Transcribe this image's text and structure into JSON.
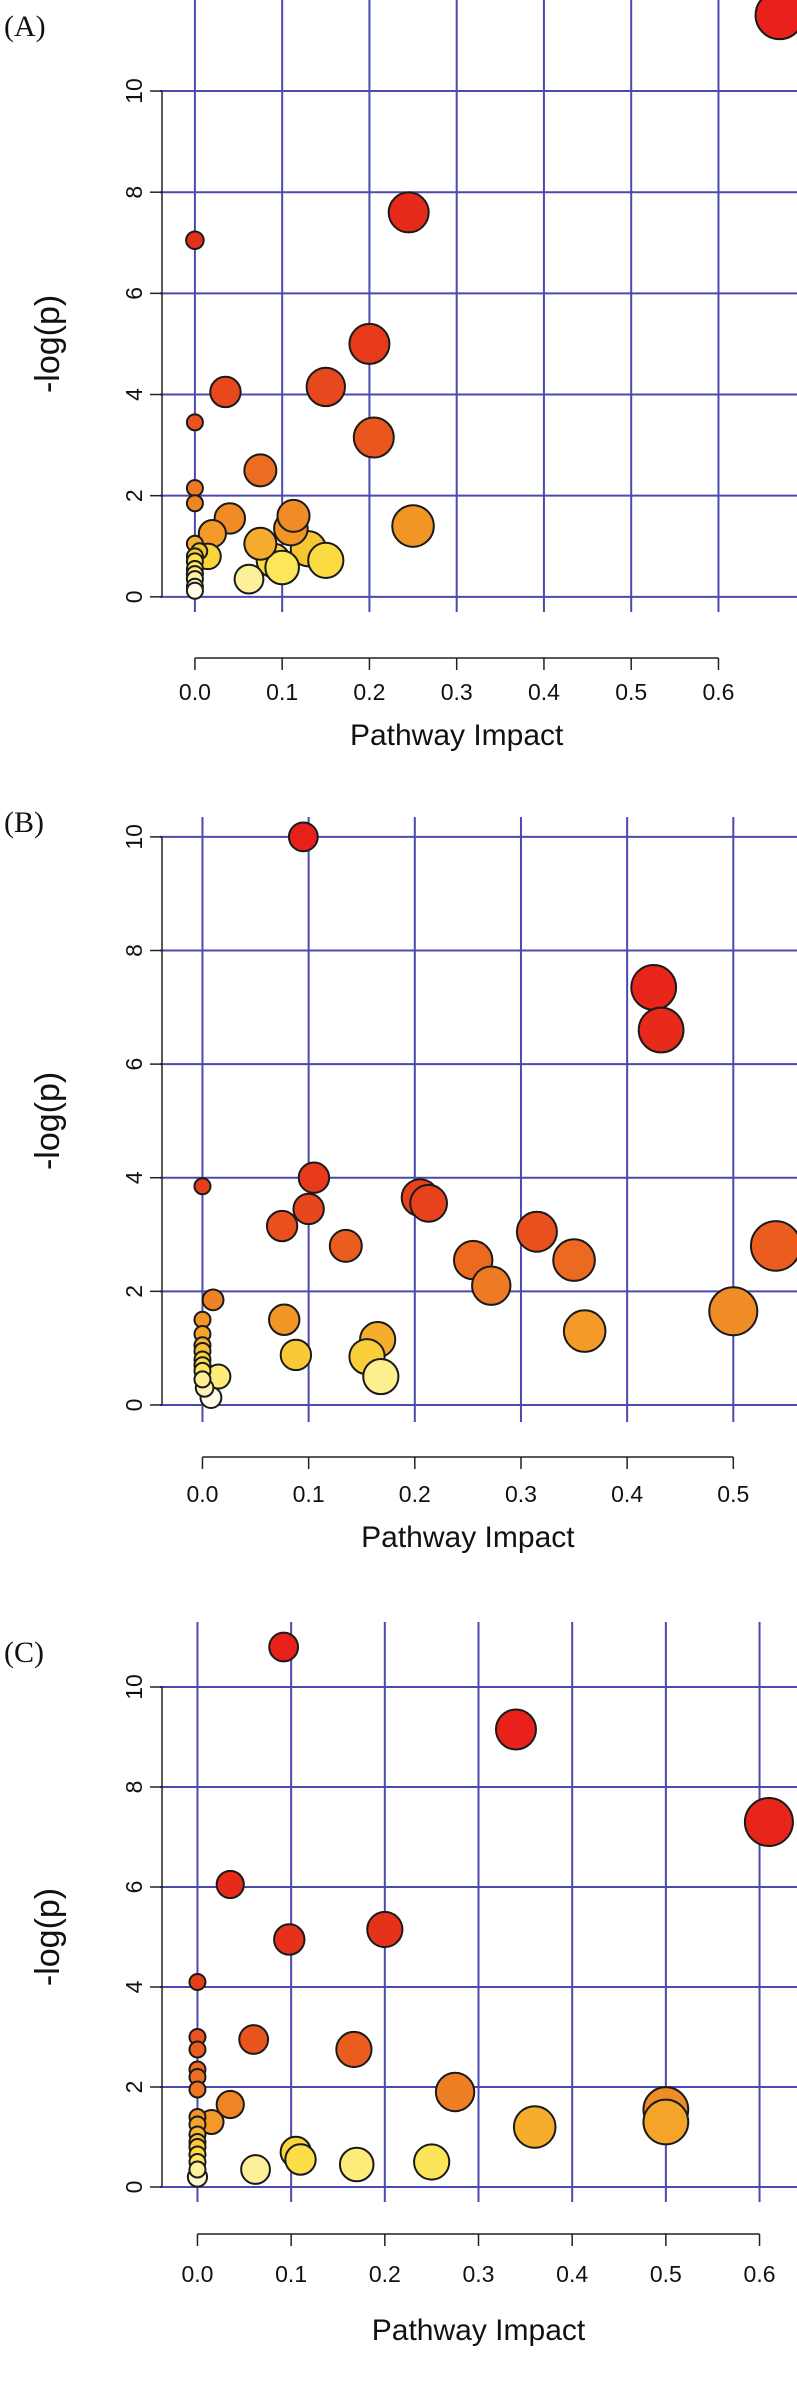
{
  "chart_data": [
    {
      "type": "scatter",
      "panel_label": "(A)",
      "xlabel": "Pathway Impact",
      "ylabel": "-log(p)",
      "xlim": [
        -0.04,
        0.69
      ],
      "ylim": [
        -0.3,
        11.8
      ],
      "xticks": [
        0.0,
        0.1,
        0.2,
        0.3,
        0.4,
        0.5,
        0.6
      ],
      "yticks": [
        0,
        2,
        4,
        6,
        8,
        10
      ],
      "xtick_labels": [
        "0.0",
        "0.1",
        "0.2",
        "0.3",
        "0.4",
        "0.5",
        "0.6"
      ],
      "ytick_labels": [
        "0",
        "2",
        "4",
        "6",
        "8",
        "10"
      ],
      "points": [
        {
          "x": 0.67,
          "y": 11.5,
          "size": 3,
          "color": "#e8221a"
        },
        {
          "x": 0.245,
          "y": 7.6,
          "size": 2.5,
          "color": "#e52a1a"
        },
        {
          "x": 0.0,
          "y": 7.05,
          "size": 1.1,
          "color": "#e5301c"
        },
        {
          "x": 0.2,
          "y": 5.0,
          "size": 2.5,
          "color": "#e63a1a"
        },
        {
          "x": 0.15,
          "y": 4.15,
          "size": 2.4,
          "color": "#e8481d"
        },
        {
          "x": 0.035,
          "y": 4.05,
          "size": 1.9,
          "color": "#e8481d"
        },
        {
          "x": 0.0,
          "y": 3.45,
          "size": 1.0,
          "color": "#e9531d"
        },
        {
          "x": 0.205,
          "y": 3.15,
          "size": 2.5,
          "color": "#e9571e"
        },
        {
          "x": 0.075,
          "y": 2.5,
          "size": 2.0,
          "color": "#ec6d21"
        },
        {
          "x": 0.0,
          "y": 2.15,
          "size": 1.0,
          "color": "#ee7a23"
        },
        {
          "x": 0.0,
          "y": 1.85,
          "size": 1.0,
          "color": "#ef8424"
        },
        {
          "x": 0.113,
          "y": 1.6,
          "size": 2.0,
          "color": "#f08c26"
        },
        {
          "x": 0.04,
          "y": 1.55,
          "size": 1.9,
          "color": "#f08c26"
        },
        {
          "x": 0.25,
          "y": 1.4,
          "size": 2.6,
          "color": "#f29527"
        },
        {
          "x": 0.11,
          "y": 1.35,
          "size": 2.1,
          "color": "#f29527"
        },
        {
          "x": 0.02,
          "y": 1.25,
          "size": 1.7,
          "color": "#f39a28"
        },
        {
          "x": 0.075,
          "y": 1.05,
          "size": 2.0,
          "color": "#f5ab2c"
        },
        {
          "x": 0.0,
          "y": 1.05,
          "size": 1.0,
          "color": "#f6b22f"
        },
        {
          "x": 0.13,
          "y": 0.95,
          "size": 2.2,
          "color": "#f8c534"
        },
        {
          "x": 0.005,
          "y": 0.9,
          "size": 1.0,
          "color": "#f8c534"
        },
        {
          "x": 0.015,
          "y": 0.8,
          "size": 1.6,
          "color": "#fad53a"
        },
        {
          "x": 0.0,
          "y": 0.8,
          "size": 1.0,
          "color": "#f9d03a"
        },
        {
          "x": 0.09,
          "y": 0.72,
          "size": 2.1,
          "color": "#fbdb41"
        },
        {
          "x": 0.15,
          "y": 0.72,
          "size": 2.2,
          "color": "#fbdb41"
        },
        {
          "x": 0.0,
          "y": 0.7,
          "size": 1.0,
          "color": "#fce04a"
        },
        {
          "x": 0.1,
          "y": 0.58,
          "size": 2.1,
          "color": "#fce75a"
        },
        {
          "x": 0.0,
          "y": 0.55,
          "size": 1.0,
          "color": "#fce75a"
        },
        {
          "x": 0.0,
          "y": 0.45,
          "size": 1.0,
          "color": "#fdee78"
        },
        {
          "x": 0.062,
          "y": 0.35,
          "size": 1.8,
          "color": "#fdf09a"
        },
        {
          "x": 0.0,
          "y": 0.35,
          "size": 1.0,
          "color": "#fdf4a8"
        },
        {
          "x": 0.0,
          "y": 0.2,
          "size": 1.0,
          "color": "#fef8cc"
        },
        {
          "x": 0.0,
          "y": 0.12,
          "size": 1.0,
          "color": "#fffbe6"
        }
      ]
    },
    {
      "type": "scatter",
      "panel_label": "(B)",
      "xlabel": "Pathway Impact",
      "ylabel": "-log(p)",
      "xlim": [
        -0.04,
        0.56
      ],
      "ylim": [
        -0.3,
        10.35
      ],
      "xticks": [
        0.0,
        0.1,
        0.2,
        0.3,
        0.4,
        0.5
      ],
      "yticks": [
        0,
        2,
        4,
        6,
        8,
        10
      ],
      "xtick_labels": [
        "0.0",
        "0.1",
        "0.2",
        "0.3",
        "0.4",
        "0.5"
      ],
      "ytick_labels": [
        "0",
        "2",
        "4",
        "6",
        "8",
        "10"
      ],
      "points": [
        {
          "x": 0.095,
          "y": 10.0,
          "size": 1.8,
          "color": "#e8201a"
        },
        {
          "x": 0.425,
          "y": 7.35,
          "size": 2.8,
          "color": "#e8251a"
        },
        {
          "x": 0.432,
          "y": 6.6,
          "size": 2.8,
          "color": "#e72a1a"
        },
        {
          "x": 0.105,
          "y": 4.0,
          "size": 1.9,
          "color": "#e63a1a"
        },
        {
          "x": 0.0,
          "y": 3.85,
          "size": 1.0,
          "color": "#e63e1b"
        },
        {
          "x": 0.205,
          "y": 3.65,
          "size": 2.3,
          "color": "#e7421c"
        },
        {
          "x": 0.213,
          "y": 3.55,
          "size": 2.3,
          "color": "#e7421c"
        },
        {
          "x": 0.1,
          "y": 3.45,
          "size": 1.9,
          "color": "#e8461d"
        },
        {
          "x": 0.075,
          "y": 3.15,
          "size": 1.9,
          "color": "#e8501d"
        },
        {
          "x": 0.315,
          "y": 3.05,
          "size": 2.5,
          "color": "#e8501d"
        },
        {
          "x": 0.54,
          "y": 2.8,
          "size": 3.1,
          "color": "#ea5d1f"
        },
        {
          "x": 0.135,
          "y": 2.8,
          "size": 2.0,
          "color": "#ea5d1f"
        },
        {
          "x": 0.255,
          "y": 2.55,
          "size": 2.4,
          "color": "#ec6920"
        },
        {
          "x": 0.35,
          "y": 2.55,
          "size": 2.6,
          "color": "#ec6920"
        },
        {
          "x": 0.272,
          "y": 2.1,
          "size": 2.4,
          "color": "#ee7a23"
        },
        {
          "x": 0.01,
          "y": 1.85,
          "size": 1.3,
          "color": "#ef8224"
        },
        {
          "x": 0.5,
          "y": 1.65,
          "size": 3.0,
          "color": "#f08c26"
        },
        {
          "x": 0.077,
          "y": 1.5,
          "size": 1.9,
          "color": "#f29527"
        },
        {
          "x": 0.0,
          "y": 1.5,
          "size": 1.0,
          "color": "#f29527"
        },
        {
          "x": 0.36,
          "y": 1.3,
          "size": 2.6,
          "color": "#f39a28"
        },
        {
          "x": 0.0,
          "y": 1.25,
          "size": 1.0,
          "color": "#f5a42a"
        },
        {
          "x": 0.165,
          "y": 1.15,
          "size": 2.2,
          "color": "#f6ad2c"
        },
        {
          "x": 0.0,
          "y": 1.05,
          "size": 1.0,
          "color": "#f7b72f"
        },
        {
          "x": 0.0,
          "y": 0.95,
          "size": 1.0,
          "color": "#f8c033"
        },
        {
          "x": 0.088,
          "y": 0.88,
          "size": 1.9,
          "color": "#f9c937"
        },
        {
          "x": 0.155,
          "y": 0.85,
          "size": 2.2,
          "color": "#fad03a"
        },
        {
          "x": 0.0,
          "y": 0.8,
          "size": 1.0,
          "color": "#fad53c"
        },
        {
          "x": 0.0,
          "y": 0.7,
          "size": 1.0,
          "color": "#fcde48"
        },
        {
          "x": 0.0,
          "y": 0.6,
          "size": 1.0,
          "color": "#fce55a"
        },
        {
          "x": 0.015,
          "y": 0.5,
          "size": 1.5,
          "color": "#fdeb7a"
        },
        {
          "x": 0.168,
          "y": 0.5,
          "size": 2.2,
          "color": "#fdee8e"
        },
        {
          "x": 0.0,
          "y": 0.45,
          "size": 1.0,
          "color": "#fdef96"
        },
        {
          "x": 0.002,
          "y": 0.3,
          "size": 1.1,
          "color": "#fef4b8"
        },
        {
          "x": 0.008,
          "y": 0.13,
          "size": 1.3,
          "color": "#fffbe6"
        }
      ]
    },
    {
      "type": "scatter",
      "panel_label": "(C)",
      "xlabel": "Pathway Impact",
      "ylabel": "-log(p)",
      "xlim": [
        -0.04,
        0.64
      ],
      "ylim": [
        -0.3,
        11.3
      ],
      "xticks": [
        0.0,
        0.1,
        0.2,
        0.3,
        0.4,
        0.5,
        0.6
      ],
      "yticks": [
        0,
        2,
        4,
        6,
        8,
        10
      ],
      "xtick_labels": [
        "0.0",
        "0.1",
        "0.2",
        "0.3",
        "0.4",
        "0.5",
        "0.6"
      ],
      "ytick_labels": [
        "0",
        "2",
        "4",
        "6",
        "8",
        "10"
      ],
      "points": [
        {
          "x": 0.092,
          "y": 10.8,
          "size": 1.8,
          "color": "#e8201a"
        },
        {
          "x": 0.34,
          "y": 9.15,
          "size": 2.5,
          "color": "#e8221a"
        },
        {
          "x": 0.61,
          "y": 7.3,
          "size": 3.0,
          "color": "#e8251a"
        },
        {
          "x": 0.035,
          "y": 6.05,
          "size": 1.7,
          "color": "#e72a1a"
        },
        {
          "x": 0.2,
          "y": 5.15,
          "size": 2.2,
          "color": "#e6321a"
        },
        {
          "x": 0.098,
          "y": 4.95,
          "size": 1.9,
          "color": "#e6321a"
        },
        {
          "x": 0.0,
          "y": 4.1,
          "size": 1.0,
          "color": "#e63e1b"
        },
        {
          "x": 0.0,
          "y": 3.0,
          "size": 1.0,
          "color": "#e9531d"
        },
        {
          "x": 0.06,
          "y": 2.95,
          "size": 1.8,
          "color": "#e9531d"
        },
        {
          "x": 0.167,
          "y": 2.75,
          "size": 2.2,
          "color": "#ea5d1f"
        },
        {
          "x": 0.0,
          "y": 2.75,
          "size": 1.0,
          "color": "#ea5d1f"
        },
        {
          "x": 0.0,
          "y": 2.35,
          "size": 1.0,
          "color": "#ec6920"
        },
        {
          "x": 0.0,
          "y": 2.2,
          "size": 1.0,
          "color": "#ec6d21"
        },
        {
          "x": 0.0,
          "y": 1.95,
          "size": 1.0,
          "color": "#ee7622"
        },
        {
          "x": 0.275,
          "y": 1.9,
          "size": 2.4,
          "color": "#ef7f24"
        },
        {
          "x": 0.035,
          "y": 1.65,
          "size": 1.7,
          "color": "#ef8424"
        },
        {
          "x": 0.5,
          "y": 1.55,
          "size": 2.8,
          "color": "#f08c26"
        },
        {
          "x": 0.0,
          "y": 1.4,
          "size": 1.0,
          "color": "#f29527"
        },
        {
          "x": 0.015,
          "y": 1.3,
          "size": 1.5,
          "color": "#f39a28"
        },
        {
          "x": 0.5,
          "y": 1.3,
          "size": 2.8,
          "color": "#f5a42a"
        },
        {
          "x": 0.0,
          "y": 1.25,
          "size": 1.0,
          "color": "#f5a42a"
        },
        {
          "x": 0.36,
          "y": 1.2,
          "size": 2.6,
          "color": "#f6ad2c"
        },
        {
          "x": 0.0,
          "y": 1.05,
          "size": 1.0,
          "color": "#f7b72f"
        },
        {
          "x": 0.0,
          "y": 0.9,
          "size": 1.0,
          "color": "#f8c033"
        },
        {
          "x": 0.0,
          "y": 0.8,
          "size": 1.0,
          "color": "#f9c937"
        },
        {
          "x": 0.105,
          "y": 0.7,
          "size": 1.9,
          "color": "#fad53c"
        },
        {
          "x": 0.0,
          "y": 0.65,
          "size": 1.0,
          "color": "#fbd940"
        },
        {
          "x": 0.11,
          "y": 0.55,
          "size": 1.9,
          "color": "#fcde48"
        },
        {
          "x": 0.25,
          "y": 0.5,
          "size": 2.2,
          "color": "#fce55a"
        },
        {
          "x": 0.0,
          "y": 0.5,
          "size": 1.0,
          "color": "#fce55a"
        },
        {
          "x": 0.17,
          "y": 0.45,
          "size": 2.1,
          "color": "#fdeb7a"
        },
        {
          "x": 0.062,
          "y": 0.35,
          "size": 1.8,
          "color": "#fdf09a"
        },
        {
          "x": 0.0,
          "y": 0.35,
          "size": 1.0,
          "color": "#fdf09a"
        },
        {
          "x": 0.0,
          "y": 0.2,
          "size": 1.2,
          "color": "#fef8cc"
        }
      ]
    }
  ]
}
